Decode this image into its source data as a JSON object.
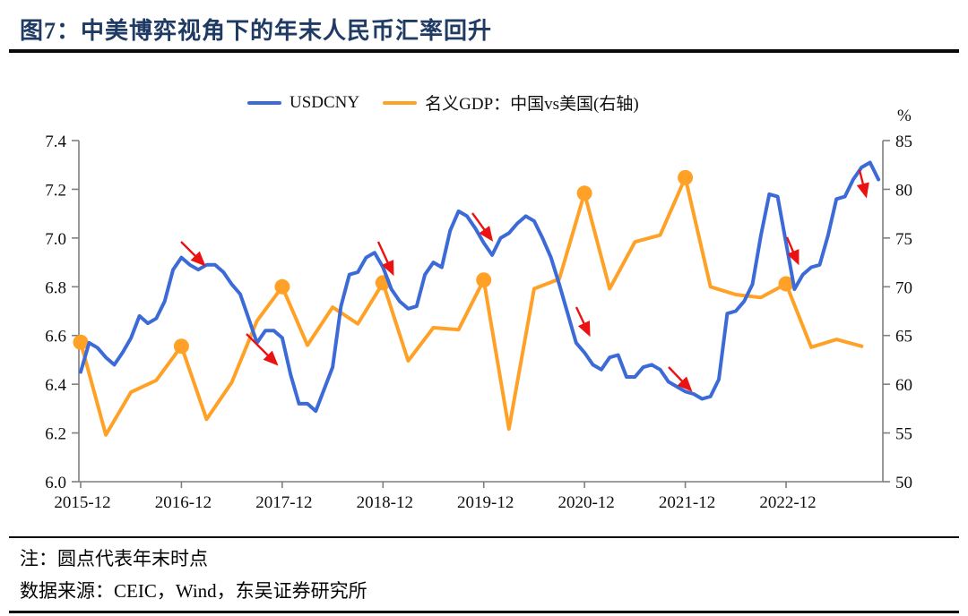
{
  "header": {
    "title": "图7：中美博弈视角下的年末人民币汇率回升"
  },
  "legend": [
    {
      "label": "USDCNY",
      "color": "#3c6bd8"
    },
    {
      "label": "名义GDP：中国vs美国(右轴)",
      "color": "#ffa126"
    }
  ],
  "notes": {
    "note": "注：圆点代表年末时点",
    "source": "数据来源：CEIC，Wind，东吴证券研究所"
  },
  "chart_data": {
    "type": "line",
    "title": "中美博弈视角下的年末人民币汇率回升",
    "grid": false,
    "legend_position": "top-center",
    "x_tick_labels": [
      "2015-12",
      "2016-12",
      "2017-12",
      "2018-12",
      "2019-12",
      "2020-12",
      "2021-12",
      "2022-12"
    ],
    "left_axis": {
      "min": 6.0,
      "max": 7.4,
      "ticks": [
        "7.4",
        "7.2",
        "7.0",
        "6.8",
        "6.6",
        "6.4",
        "6.2",
        "6.0"
      ]
    },
    "right_axis": {
      "min": 50,
      "max": 85,
      "ticks": [
        "85",
        "80",
        "75",
        "70",
        "65",
        "60",
        "55",
        "50"
      ],
      "unit": "%"
    },
    "series": [
      {
        "name": "USDCNY",
        "axis": "left",
        "color": "#3c6bd8",
        "freq": "monthly",
        "start": "2015-12",
        "values": [
          6.45,
          6.57,
          6.55,
          6.51,
          6.48,
          6.53,
          6.59,
          6.68,
          6.65,
          6.67,
          6.74,
          6.87,
          6.92,
          6.89,
          6.87,
          6.89,
          6.89,
          6.86,
          6.81,
          6.77,
          6.67,
          6.57,
          6.62,
          6.62,
          6.59,
          6.44,
          6.32,
          6.32,
          6.29,
          6.38,
          6.47,
          6.72,
          6.85,
          6.86,
          6.92,
          6.94,
          6.88,
          6.79,
          6.74,
          6.71,
          6.72,
          6.85,
          6.9,
          6.88,
          7.03,
          7.11,
          7.09,
          7.04,
          6.98,
          6.93,
          7.0,
          7.02,
          7.06,
          7.09,
          7.07,
          7.0,
          6.92,
          6.81,
          6.69,
          6.57,
          6.53,
          6.48,
          6.46,
          6.51,
          6.52,
          6.43,
          6.43,
          6.47,
          6.48,
          6.46,
          6.41,
          6.39,
          6.37,
          6.36,
          6.34,
          6.35,
          6.42,
          6.69,
          6.7,
          6.74,
          6.81,
          7.01,
          7.18,
          7.17,
          6.98,
          6.79,
          6.85,
          6.88,
          6.89,
          7.01,
          7.16,
          7.17,
          7.24,
          7.29,
          7.31,
          7.24
        ]
      },
      {
        "name": "名义GDP：中国vs美国(右轴)",
        "axis": "right",
        "color": "#ffa126",
        "freq": "quarterly",
        "start": "2015-Q4",
        "values": [
          64.3,
          54.8,
          59.2,
          60.4,
          63.9,
          56.4,
          60.2,
          66.5,
          70.0,
          64.0,
          67.9,
          66.2,
          70.4,
          62.4,
          65.8,
          65.6,
          70.7,
          55.4,
          69.8,
          70.8,
          79.6,
          69.8,
          74.6,
          75.3,
          81.2,
          70.0,
          69.2,
          68.9,
          70.3,
          63.8,
          64.6,
          63.9
        ],
        "year_end_dot_indices": [
          0,
          4,
          8,
          12,
          16,
          20,
          24,
          28
        ]
      }
    ],
    "annotations": {
      "red_arrow_color": "#ea1212",
      "red_arrows": [
        {
          "x1": 202,
          "y1": 270,
          "x2": 227,
          "y2": 295
        },
        {
          "x1": 275,
          "y1": 373,
          "x2": 308,
          "y2": 406
        },
        {
          "x1": 422,
          "y1": 270,
          "x2": 438,
          "y2": 305
        },
        {
          "x1": 527,
          "y1": 238,
          "x2": 548,
          "y2": 267
        },
        {
          "x1": 643,
          "y1": 343,
          "x2": 657,
          "y2": 373
        },
        {
          "x1": 746,
          "y1": 410,
          "x2": 770,
          "y2": 435
        },
        {
          "x1": 878,
          "y1": 265,
          "x2": 890,
          "y2": 293
        },
        {
          "x1": 959,
          "y1": 190,
          "x2": 966,
          "y2": 218
        }
      ]
    }
  }
}
